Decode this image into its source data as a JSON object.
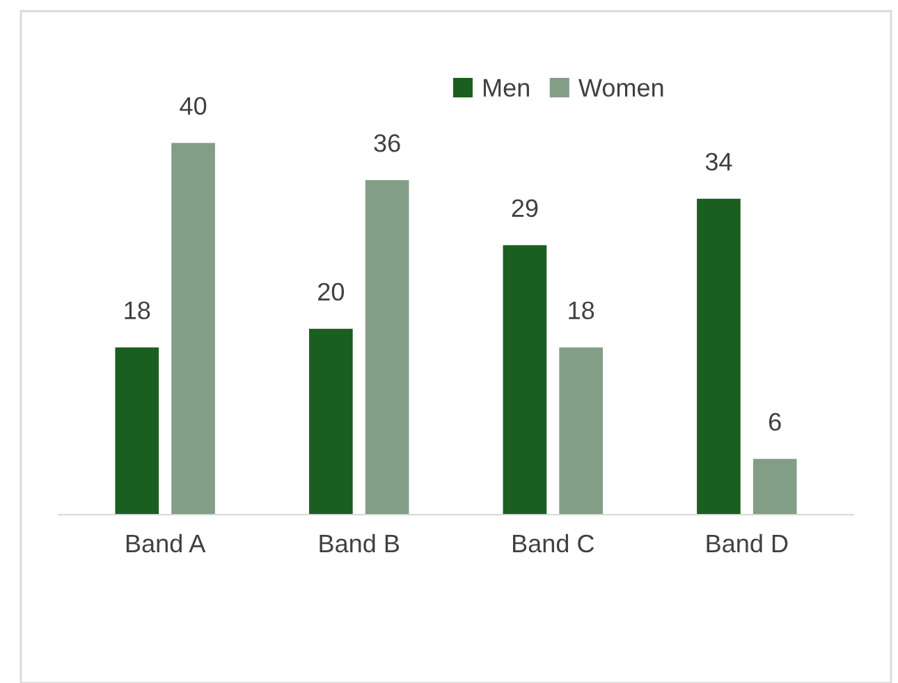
{
  "chart_data": {
    "type": "bar",
    "categories": [
      "Band A",
      "Band B",
      "Band C",
      "Band D"
    ],
    "series": [
      {
        "name": "Men",
        "color": "#1a5e20",
        "values": [
          18,
          20,
          29,
          34
        ]
      },
      {
        "name": "Women",
        "color": "#839e86",
        "values": [
          40,
          36,
          18,
          6
        ]
      }
    ],
    "data_labels": true,
    "legend": "top"
  }
}
